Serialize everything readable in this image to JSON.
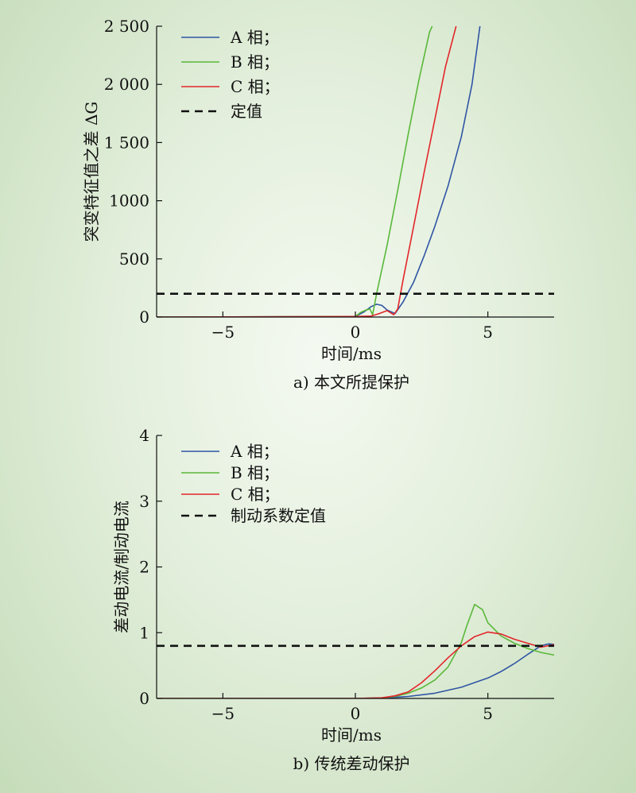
{
  "chart_data": [
    {
      "type": "line",
      "caption": "a) 本文所提保护",
      "xlabel": "时间/ms",
      "ylabel": "突变特征值之差 ΔG",
      "xlim": [
        -7.5,
        7.5
      ],
      "ylim": [
        0,
        2500
      ],
      "xticks": [
        -5,
        0,
        5
      ],
      "xtick_labels": [
        "−5",
        "0",
        "5"
      ],
      "yticks": [
        0,
        500,
        1000,
        1500,
        2000,
        2500
      ],
      "ytick_labels": [
        "0",
        "500",
        "1000",
        "1 500",
        "2 000",
        "2 500"
      ],
      "legend_position": "top-left",
      "series": [
        {
          "name": "A 相；",
          "color": "#2f55a4",
          "x": [
            -7.5,
            -2,
            0,
            0.3,
            0.6,
            0.8,
            1.0,
            1.2,
            1.5,
            1.8,
            2.2,
            2.6,
            3.0,
            3.5,
            4.0,
            4.4,
            4.7
          ],
          "y": [
            0,
            3,
            5,
            40,
            90,
            110,
            100,
            60,
            30,
            130,
            300,
            530,
            780,
            1130,
            1550,
            2000,
            2500
          ]
        },
        {
          "name": "B 相；",
          "color": "#5ab83a",
          "x": [
            -7.5,
            -2,
            0,
            0.2,
            0.4,
            0.55,
            0.65,
            0.8,
            1.2,
            1.6,
            2.0,
            2.4,
            2.8,
            2.9
          ],
          "y": [
            0,
            3,
            5,
            40,
            60,
            70,
            20,
            200,
            620,
            1090,
            1580,
            2040,
            2450,
            2500
          ]
        },
        {
          "name": "C 相；",
          "color": "#e3262a",
          "x": [
            -7.5,
            -2,
            0,
            0.3,
            0.6,
            0.9,
            1.2,
            1.45,
            1.6,
            1.8,
            2.2,
            2.6,
            3.0,
            3.4,
            3.8
          ],
          "y": [
            0,
            3,
            5,
            6,
            8,
            30,
            55,
            20,
            70,
            320,
            780,
            1250,
            1700,
            2150,
            2500
          ]
        },
        {
          "name": "定值",
          "color": "#111111",
          "dashed": true,
          "x": [
            -7.5,
            7.5
          ],
          "y": [
            200,
            200
          ]
        }
      ]
    },
    {
      "type": "line",
      "caption": "b) 传统差动保护",
      "xlabel": "时间/ms",
      "ylabel": "差动电流/制动电流",
      "xlim": [
        -7.5,
        7.5
      ],
      "ylim": [
        0,
        4
      ],
      "xticks": [
        -5,
        0,
        5
      ],
      "xtick_labels": [
        "−5",
        "0",
        "5"
      ],
      "yticks": [
        0,
        1,
        2,
        3,
        4
      ],
      "ytick_labels": [
        "0",
        "1",
        "2",
        "3",
        "4"
      ],
      "legend_position": "top-left",
      "series": [
        {
          "name": "A 相；",
          "color": "#2f55a4",
          "x": [
            -7.5,
            0,
            1,
            2,
            3,
            4,
            5,
            5.5,
            6,
            6.5,
            7,
            7.3,
            7.5
          ],
          "y": [
            0,
            0,
            0.005,
            0.03,
            0.08,
            0.17,
            0.31,
            0.41,
            0.53,
            0.67,
            0.8,
            0.83,
            0.82
          ]
        },
        {
          "name": "B 相；",
          "color": "#5ab83a",
          "x": [
            -7.5,
            0,
            1,
            1.5,
            2,
            2.5,
            3,
            3.5,
            4,
            4.2,
            4.5,
            4.8,
            5,
            5.5,
            6,
            6.5,
            7,
            7.5
          ],
          "y": [
            0,
            0,
            0.01,
            0.03,
            0.08,
            0.16,
            0.28,
            0.48,
            0.85,
            1.1,
            1.43,
            1.35,
            1.15,
            0.95,
            0.84,
            0.76,
            0.7,
            0.66
          ]
        },
        {
          "name": "C 相；",
          "color": "#e3262a",
          "x": [
            -7.5,
            0,
            1,
            1.5,
            2,
            2.5,
            3,
            3.5,
            4,
            4.5,
            5,
            5.5,
            6,
            6.5,
            7,
            7.5
          ],
          "y": [
            0,
            0,
            0.01,
            0.04,
            0.1,
            0.24,
            0.42,
            0.62,
            0.8,
            0.94,
            1.01,
            0.98,
            0.9,
            0.84,
            0.78,
            0.82
          ]
        },
        {
          "name": "制动系数定值",
          "color": "#111111",
          "dashed": true,
          "x": [
            -7.5,
            7.5
          ],
          "y": [
            0.8,
            0.8
          ]
        }
      ]
    }
  ]
}
